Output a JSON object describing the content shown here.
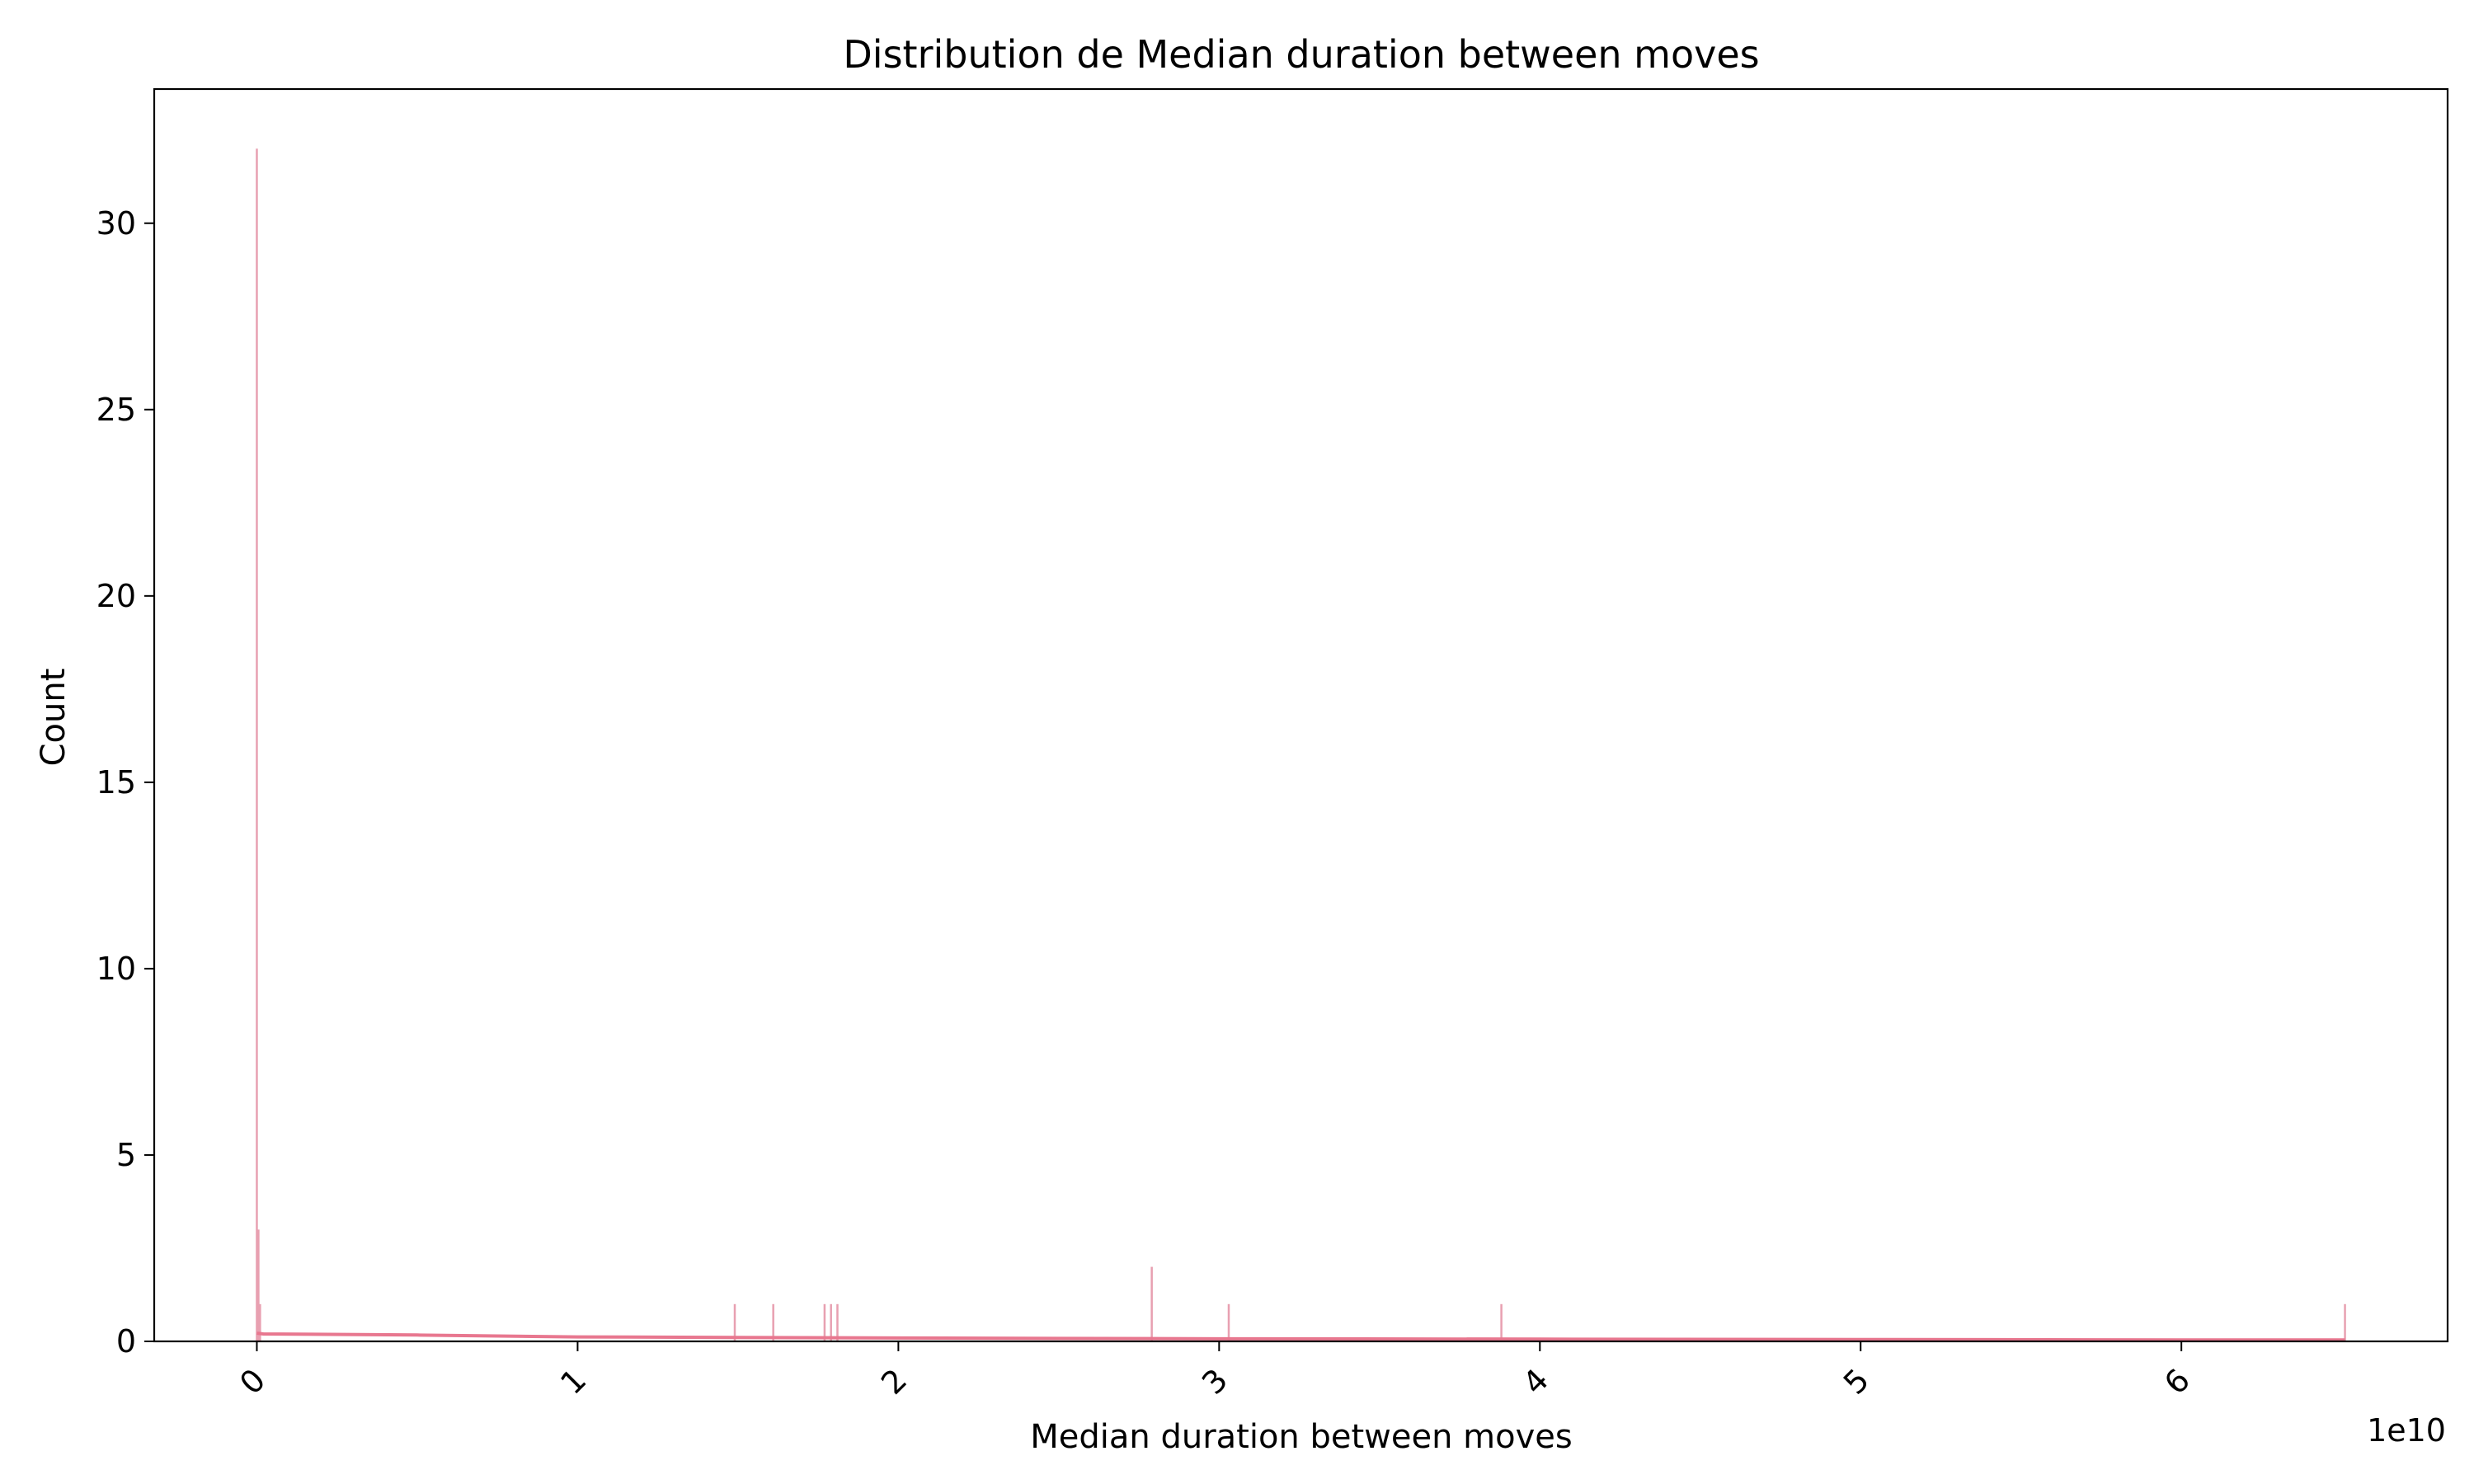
{
  "chart_data": {
    "type": "bar",
    "title": "Distribution de Median duration between moves",
    "xlabel": "Median duration between moves",
    "ylabel": "Count",
    "x_offset_label": "1e10",
    "xlim": [
      -0.32,
      6.83
    ],
    "ylim": [
      0,
      33.6
    ],
    "x_ticks": [
      0,
      1,
      2,
      3,
      4,
      5,
      6
    ],
    "x_tick_labels": [
      "0",
      "1",
      "2",
      "3",
      "4",
      "5",
      "6"
    ],
    "x_tick_rotation": 45,
    "y_ticks": [
      0,
      5,
      10,
      15,
      20,
      25,
      30
    ],
    "y_tick_labels": [
      "0",
      "5",
      "10",
      "15",
      "20",
      "25",
      "30"
    ],
    "grid": false,
    "colors": {
      "bars": "#e8a0b1",
      "kde": "#e8778f"
    },
    "bars": [
      {
        "x": 0.0,
        "count": 32
      },
      {
        "x": 0.005,
        "count": 3
      },
      {
        "x": 0.01,
        "count": 1
      },
      {
        "x": 1.49,
        "count": 1
      },
      {
        "x": 1.61,
        "count": 1
      },
      {
        "x": 1.77,
        "count": 1
      },
      {
        "x": 1.79,
        "count": 1
      },
      {
        "x": 1.81,
        "count": 1
      },
      {
        "x": 2.79,
        "count": 2
      },
      {
        "x": 3.03,
        "count": 1
      },
      {
        "x": 3.88,
        "count": 1
      },
      {
        "x": 6.51,
        "count": 1
      }
    ],
    "kde_curve": {
      "x": [
        0.0,
        0.02,
        0.5,
        1.0,
        2.0,
        3.0,
        4.0,
        5.0,
        6.0,
        6.51
      ],
      "y": [
        0.22,
        0.2,
        0.17,
        0.12,
        0.09,
        0.07,
        0.06,
        0.05,
        0.04,
        0.04
      ]
    }
  }
}
